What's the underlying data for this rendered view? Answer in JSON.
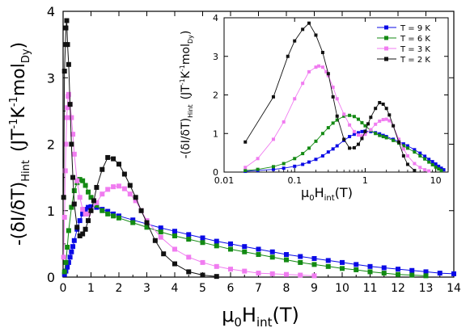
{
  "chart_data": [
    {
      "type": "line",
      "role": "main",
      "xlabel": "μ0Hint(T)",
      "xlabel_parts": {
        "base": "μ",
        "sub1": "0",
        "mid": "H",
        "sub2": "int",
        "unit": "(T)"
      },
      "ylabel_parts": {
        "left": "-(δI/δT)",
        "sub": "Hint",
        "unit": "(JT",
        "sup1": "-1",
        "k": "K",
        "sup2": "-1",
        "mol": "mol",
        "molsub": "Dy",
        "end": ")"
      },
      "xlim": [
        0,
        14
      ],
      "ylim": [
        0,
        4
      ],
      "x_ticks": [
        "0",
        "1",
        "2",
        "3",
        "4",
        "5",
        "6",
        "7",
        "8",
        "9",
        "10",
        "11",
        "12",
        "13",
        "14"
      ],
      "y_ticks": [
        "0",
        "1",
        "2",
        "3",
        "4"
      ],
      "grid": false,
      "series": [
        {
          "name": "T = 9 K",
          "color": "#0a0ae6",
          "marker": "square",
          "x": [
            0.05,
            0.1,
            0.15,
            0.2,
            0.25,
            0.3,
            0.35,
            0.4,
            0.5,
            0.6,
            0.7,
            0.8,
            0.9,
            1.0,
            1.2,
            1.4,
            1.6,
            1.8,
            2.0,
            2.5,
            3.0,
            3.5,
            4.0,
            4.5,
            5.0,
            5.5,
            6.0,
            6.5,
            7.0,
            7.5,
            8.0,
            8.5,
            9.0,
            9.5,
            10.0,
            10.5,
            11.0,
            11.5,
            12.0,
            12.5,
            13.0,
            13.5,
            14.0
          ],
          "y": [
            0.04,
            0.09,
            0.15,
            0.22,
            0.3,
            0.38,
            0.46,
            0.55,
            0.72,
            0.85,
            0.95,
            1.02,
            1.05,
            1.06,
            1.05,
            1.02,
            0.99,
            0.95,
            0.92,
            0.86,
            0.8,
            0.74,
            0.69,
            0.64,
            0.59,
            0.54,
            0.5,
            0.46,
            0.42,
            0.38,
            0.34,
            0.31,
            0.28,
            0.25,
            0.22,
            0.19,
            0.16,
            0.14,
            0.12,
            0.1,
            0.08,
            0.06,
            0.05
          ]
        },
        {
          "name": "T = 6 K",
          "color": "#138a13",
          "marker": "square",
          "x": [
            0.05,
            0.1,
            0.15,
            0.2,
            0.3,
            0.4,
            0.5,
            0.6,
            0.7,
            0.8,
            0.9,
            1.0,
            1.2,
            1.4,
            1.6,
            1.8,
            2.0,
            2.5,
            3.0,
            3.5,
            4.0,
            4.5,
            5.0,
            5.5,
            6.0,
            6.5,
            7.0,
            7.5,
            8.0,
            8.5,
            9.0,
            9.5,
            10.0,
            10.5,
            11.0,
            11.5,
            12.0,
            12.5,
            13.0
          ],
          "y": [
            0.08,
            0.22,
            0.45,
            0.7,
            1.05,
            1.3,
            1.42,
            1.47,
            1.45,
            1.38,
            1.28,
            1.2,
            1.08,
            1.0,
            0.95,
            0.92,
            0.89,
            0.82,
            0.75,
            0.68,
            0.62,
            0.57,
            0.52,
            0.47,
            0.42,
            0.38,
            0.34,
            0.3,
            0.26,
            0.22,
            0.19,
            0.16,
            0.13,
            0.11,
            0.08,
            0.06,
            0.04,
            0.03,
            0.02
          ]
        },
        {
          "name": "T = 3 K",
          "color": "#f07cf0",
          "marker": "square",
          "x": [
            0.02,
            0.05,
            0.08,
            0.1,
            0.13,
            0.15,
            0.18,
            0.2,
            0.25,
            0.3,
            0.35,
            0.4,
            0.5,
            0.6,
            0.7,
            0.8,
            0.9,
            1.0,
            1.2,
            1.4,
            1.6,
            1.8,
            2.0,
            2.2,
            2.4,
            2.6,
            2.8,
            3.0,
            3.5,
            4.0,
            4.5,
            5.0,
            5.5,
            6.0,
            6.5,
            7.0,
            7.5,
            8.0,
            8.5,
            9.0
          ],
          "y": [
            0.3,
            0.9,
            1.6,
            2.0,
            2.4,
            2.55,
            2.72,
            2.75,
            2.6,
            2.4,
            2.15,
            1.85,
            1.45,
            1.2,
            1.02,
            0.95,
            0.95,
            1.0,
            1.12,
            1.25,
            1.32,
            1.36,
            1.37,
            1.33,
            1.25,
            1.15,
            1.0,
            0.85,
            0.6,
            0.42,
            0.3,
            0.22,
            0.16,
            0.12,
            0.09,
            0.06,
            0.05,
            0.04,
            0.03,
            0.02
          ]
        },
        {
          "name": "T = 2 K",
          "color": "#111111",
          "marker": "square",
          "x": [
            0.02,
            0.05,
            0.08,
            0.1,
            0.13,
            0.16,
            0.2,
            0.25,
            0.3,
            0.35,
            0.4,
            0.5,
            0.6,
            0.7,
            0.8,
            0.9,
            1.0,
            1.1,
            1.2,
            1.4,
            1.6,
            1.8,
            2.0,
            2.2,
            2.4,
            2.6,
            2.8,
            3.0,
            3.3,
            3.6,
            4.0,
            4.5,
            5.0,
            5.5
          ],
          "y": [
            1.2,
            3.1,
            3.5,
            3.75,
            3.86,
            3.5,
            3.2,
            2.6,
            2.0,
            1.5,
            1.1,
            0.75,
            0.62,
            0.65,
            0.72,
            0.85,
            1.0,
            1.15,
            1.35,
            1.62,
            1.8,
            1.78,
            1.7,
            1.55,
            1.38,
            1.2,
            1.0,
            0.82,
            0.55,
            0.35,
            0.2,
            0.08,
            0.03,
            0.01
          ]
        }
      ]
    },
    {
      "type": "line",
      "role": "inset",
      "xscale": "log",
      "xlabel_parts": {
        "base": "μ",
        "sub1": "0",
        "mid": "H",
        "sub2": "int",
        "unit": "(T)"
      },
      "ylabel_parts": {
        "left": "-(δI/δT)",
        "sub": "Hint",
        "unit": "(JT",
        "sup1": "-1",
        "k": "K",
        "sup2": "-1",
        "mol": "mol",
        "molsub": "Dy",
        "end": ")"
      },
      "xlim": [
        0.01,
        15
      ],
      "ylim": [
        0,
        4
      ],
      "x_ticks": [
        {
          "v": 0.01,
          "label": "0.01"
        },
        {
          "v": 0.1,
          "label": "0.1"
        },
        {
          "v": 1,
          "label": "1"
        },
        {
          "v": 10,
          "label": "10"
        }
      ],
      "y_ticks": [
        "0",
        "1",
        "2",
        "3",
        "4"
      ],
      "legend_position": "top-right",
      "series": [
        {
          "name": "T = 9 K",
          "color": "#0a0ae6",
          "marker": "square",
          "x": [
            0.02,
            0.03,
            0.05,
            0.07,
            0.1,
            0.13,
            0.16,
            0.2,
            0.25,
            0.3,
            0.35,
            0.4,
            0.5,
            0.6,
            0.7,
            0.8,
            0.9,
            1.0,
            1.2,
            1.4,
            1.6,
            1.8,
            2.0,
            2.5,
            3.0,
            3.5,
            4.0,
            5.0,
            6.0,
            7.0,
            8.0,
            9.0,
            10.0,
            11.0,
            12.0,
            13.0
          ],
          "y": [
            0.02,
            0.04,
            0.07,
            0.1,
            0.15,
            0.2,
            0.26,
            0.33,
            0.42,
            0.52,
            0.6,
            0.68,
            0.82,
            0.92,
            0.98,
            1.02,
            1.05,
            1.06,
            1.05,
            1.02,
            0.99,
            0.95,
            0.92,
            0.85,
            0.79,
            0.73,
            0.68,
            0.58,
            0.49,
            0.41,
            0.33,
            0.27,
            0.21,
            0.15,
            0.1,
            0.06
          ]
        },
        {
          "name": "T = 6 K",
          "color": "#138a13",
          "marker": "square",
          "x": [
            0.02,
            0.03,
            0.05,
            0.07,
            0.1,
            0.13,
            0.16,
            0.2,
            0.25,
            0.3,
            0.35,
            0.4,
            0.5,
            0.6,
            0.7,
            0.8,
            0.9,
            1.0,
            1.2,
            1.4,
            1.6,
            1.8,
            2.0,
            2.5,
            3.0,
            3.5,
            4.0,
            5.0,
            6.0,
            7.0,
            8.0,
            9.0,
            10.0,
            11.0,
            12.0
          ],
          "y": [
            0.04,
            0.07,
            0.14,
            0.22,
            0.35,
            0.48,
            0.62,
            0.8,
            1.0,
            1.15,
            1.27,
            1.35,
            1.45,
            1.47,
            1.44,
            1.37,
            1.28,
            1.2,
            1.08,
            1.0,
            0.95,
            0.92,
            0.89,
            0.82,
            0.75,
            0.68,
            0.62,
            0.52,
            0.42,
            0.34,
            0.26,
            0.19,
            0.13,
            0.08,
            0.04
          ]
        },
        {
          "name": "T = 3 K",
          "color": "#f07cf0",
          "marker": "square",
          "x": [
            0.02,
            0.03,
            0.05,
            0.07,
            0.1,
            0.13,
            0.16,
            0.2,
            0.22,
            0.25,
            0.28,
            0.3,
            0.35,
            0.4,
            0.5,
            0.6,
            0.7,
            0.8,
            0.9,
            1.0,
            1.2,
            1.4,
            1.6,
            1.8,
            2.0,
            2.2,
            2.5,
            3.0,
            3.5,
            4.0,
            5.0,
            6.0,
            7.0,
            8.0
          ],
          "y": [
            0.12,
            0.35,
            0.85,
            1.3,
            1.9,
            2.3,
            2.6,
            2.72,
            2.75,
            2.72,
            2.6,
            2.5,
            2.2,
            1.9,
            1.5,
            1.22,
            1.05,
            0.96,
            0.94,
            0.98,
            1.1,
            1.24,
            1.32,
            1.36,
            1.37,
            1.33,
            1.2,
            0.85,
            0.6,
            0.42,
            0.22,
            0.12,
            0.06,
            0.03
          ]
        },
        {
          "name": "T = 2 K",
          "color": "#111111",
          "marker": "square",
          "x": [
            0.02,
            0.05,
            0.08,
            0.1,
            0.13,
            0.16,
            0.2,
            0.25,
            0.3,
            0.35,
            0.4,
            0.5,
            0.6,
            0.7,
            0.8,
            0.9,
            1.0,
            1.1,
            1.2,
            1.4,
            1.6,
            1.8,
            2.0,
            2.2,
            2.5,
            3.0,
            3.5,
            4.0,
            5.0
          ],
          "y": [
            0.78,
            1.95,
            3.0,
            3.4,
            3.7,
            3.86,
            3.55,
            3.1,
            2.55,
            1.95,
            1.45,
            0.85,
            0.62,
            0.63,
            0.72,
            0.87,
            1.05,
            1.25,
            1.42,
            1.65,
            1.8,
            1.76,
            1.65,
            1.48,
            1.2,
            0.78,
            0.42,
            0.2,
            0.04
          ]
        }
      ]
    }
  ]
}
